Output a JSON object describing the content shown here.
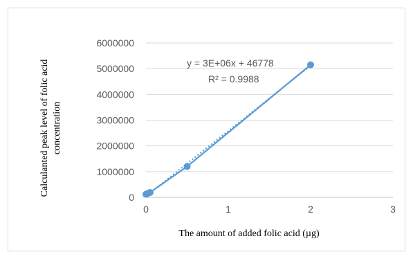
{
  "chart_data": {
    "type": "scatter",
    "title": "",
    "xlabel": "The amount of added folic acid (µg)",
    "ylabel_lines": [
      "Calculanted peak level of folic acid",
      "concentration"
    ],
    "xlim": [
      0,
      3
    ],
    "ylim": [
      0,
      6000000
    ],
    "x_ticks": [
      "0",
      "1",
      "2",
      "3"
    ],
    "y_ticks": [
      "0",
      "1000000",
      "2000000",
      "3000000",
      "4000000",
      "5000000",
      "6000000"
    ],
    "grid": "horizontal",
    "series": [
      {
        "x": [
          0,
          0.02,
          0.05,
          0.5,
          2
        ],
        "y": [
          120000,
          150000,
          190000,
          1200000,
          5150000
        ],
        "color": "#5b9bd5",
        "marker": "circle",
        "line": "solid"
      }
    ],
    "trendline": {
      "type": "linear",
      "slope": 2537000,
      "intercept": 46778,
      "style": "dotted",
      "equation": "y = 3E+06x + 46778",
      "r_squared": "R² = 0.9988"
    }
  }
}
